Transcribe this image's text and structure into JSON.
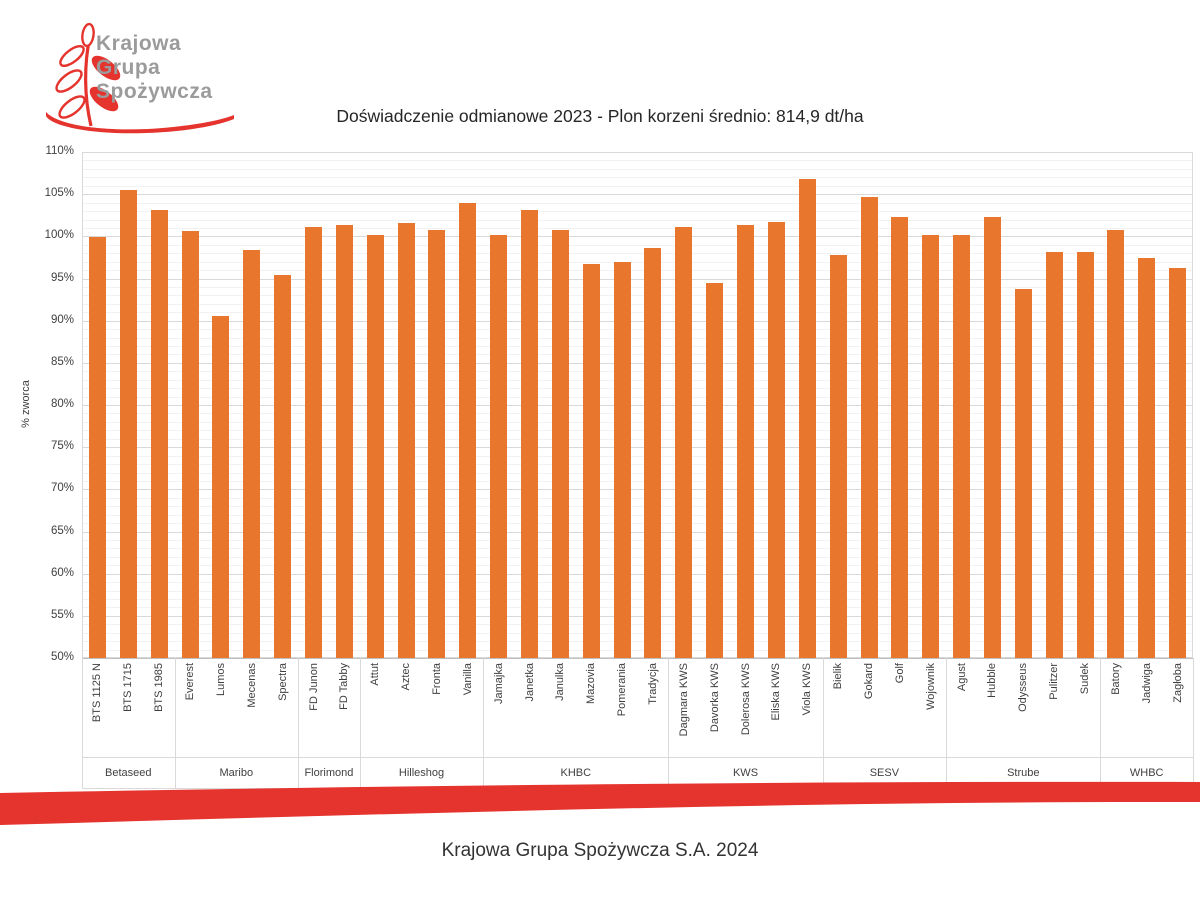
{
  "logo": {
    "lines": [
      "Krajowa",
      "Grupa",
      "Spożywcza"
    ]
  },
  "title": "Doświadczenie odmianowe 2023 - Plon korzeni średnio: 814,9 dt/ha",
  "footer": "Krajowa Grupa Spożywcza S.A. 2024",
  "colors": {
    "bar": "#e8762d",
    "accent_red": "#e5332d",
    "logo_text": "#9b9b9b"
  },
  "chart_data": {
    "type": "bar",
    "title": "Doświadczenie odmianowe 2023 - Plon korzeni średnio: 814,9 dt/ha",
    "ylabel": "% zworca",
    "ylim": [
      50,
      110
    ],
    "ytick_step": 5,
    "ytick_suffix": "%",
    "grid": "major+minor",
    "legend": "none",
    "groups": [
      {
        "name": "Betaseed",
        "items": [
          {
            "label": "BTS 1125 N",
            "value": 99.9
          },
          {
            "label": "BTS 1715",
            "value": 105.5
          },
          {
            "label": "BTS 1985",
            "value": 103.1
          }
        ]
      },
      {
        "name": "Maribo",
        "items": [
          {
            "label": "Everest",
            "value": 100.6
          },
          {
            "label": "Lumos",
            "value": 90.5
          },
          {
            "label": "Mecenas",
            "value": 98.4
          },
          {
            "label": "Spectra",
            "value": 95.4
          }
        ]
      },
      {
        "name": "Florimond",
        "items": [
          {
            "label": "FD Junon",
            "value": 101.1
          },
          {
            "label": "FD Tabby",
            "value": 101.3
          }
        ]
      },
      {
        "name": "Hilleshog",
        "items": [
          {
            "label": "Attut",
            "value": 100.2
          },
          {
            "label": "Aztec",
            "value": 101.6
          },
          {
            "label": "Fronta",
            "value": 100.7
          },
          {
            "label": "Vanilla",
            "value": 103.9
          }
        ]
      },
      {
        "name": "KHBC",
        "items": [
          {
            "label": "Jamajka",
            "value": 100.2
          },
          {
            "label": "Janetka",
            "value": 103.1
          },
          {
            "label": "Janulka",
            "value": 100.8
          },
          {
            "label": "Mazovia",
            "value": 96.7
          },
          {
            "label": "Pomerania",
            "value": 97.0
          },
          {
            "label": "Tradycja",
            "value": 98.6
          }
        ]
      },
      {
        "name": "KWS",
        "items": [
          {
            "label": "Dagmara KWS",
            "value": 101.1
          },
          {
            "label": "Davorka KWS",
            "value": 94.5
          },
          {
            "label": "Dolerosa KWS",
            "value": 101.4
          },
          {
            "label": "Eliska KWS",
            "value": 101.7
          },
          {
            "label": "Viola KWS",
            "value": 106.8
          }
        ]
      },
      {
        "name": "SESV",
        "items": [
          {
            "label": "Bielik",
            "value": 97.8
          },
          {
            "label": "Gokard",
            "value": 104.7
          },
          {
            "label": "Golf",
            "value": 102.3
          },
          {
            "label": "Wojownik",
            "value": 100.2
          }
        ]
      },
      {
        "name": "Strube",
        "items": [
          {
            "label": "Agust",
            "value": 100.2
          },
          {
            "label": "Hubble",
            "value": 102.3
          },
          {
            "label": "Odysseus",
            "value": 93.8
          },
          {
            "label": "Pulitzer",
            "value": 98.2
          },
          {
            "label": "Sudek",
            "value": 98.2
          }
        ]
      },
      {
        "name": "WHBC",
        "items": [
          {
            "label": "Batory",
            "value": 100.7
          },
          {
            "label": "Jadwiga",
            "value": 97.4
          },
          {
            "label": "Zagłoba",
            "value": 96.2
          }
        ]
      }
    ]
  }
}
